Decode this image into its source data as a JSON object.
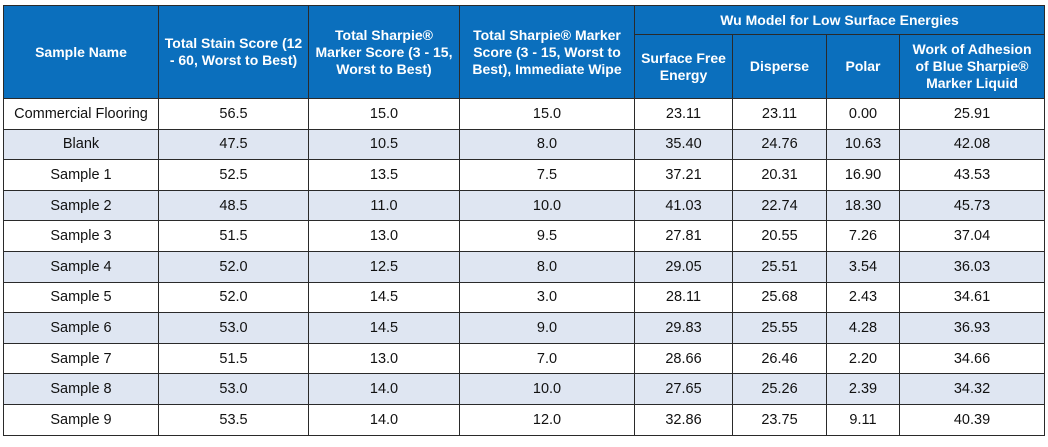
{
  "table": {
    "headers": {
      "sample_name": "Sample Name",
      "total_stain": "Total Stain Score (12 - 60, Worst to Best)",
      "sharpie_score": "Total Sharpie® Marker Score (3 - 15, Worst to Best)",
      "sharpie_immediate": "Total Sharpie® Marker Score (3 - 15, Worst to Best), Immediate Wipe",
      "wu_group": "Wu Model for Low Surface Energies",
      "surface_free_energy": "Surface Free Energy",
      "disperse": "Disperse",
      "polar": "Polar",
      "work_of_adhesion": "Work of Adhesion of Blue Sharpie® Marker Liquid"
    },
    "rows": [
      [
        "Commercial Flooring",
        "56.5",
        "15.0",
        "15.0",
        "23.11",
        "23.11",
        "0.00",
        "25.91"
      ],
      [
        "Blank",
        "47.5",
        "10.5",
        "8.0",
        "35.40",
        "24.76",
        "10.63",
        "42.08"
      ],
      [
        "Sample 1",
        "52.5",
        "13.5",
        "7.5",
        "37.21",
        "20.31",
        "16.90",
        "43.53"
      ],
      [
        "Sample 2",
        "48.5",
        "11.0",
        "10.0",
        "41.03",
        "22.74",
        "18.30",
        "45.73"
      ],
      [
        "Sample 3",
        "51.5",
        "13.0",
        "9.5",
        "27.81",
        "20.55",
        "7.26",
        "37.04"
      ],
      [
        "Sample 4",
        "52.0",
        "12.5",
        "8.0",
        "29.05",
        "25.51",
        "3.54",
        "36.03"
      ],
      [
        "Sample 5",
        "52.0",
        "14.5",
        "3.0",
        "28.11",
        "25.68",
        "2.43",
        "34.61"
      ],
      [
        "Sample 6",
        "53.0",
        "14.5",
        "9.0",
        "29.83",
        "25.55",
        "4.28",
        "36.93"
      ],
      [
        "Sample 7",
        "51.5",
        "13.0",
        "7.0",
        "28.66",
        "26.46",
        "2.20",
        "34.66"
      ],
      [
        "Sample 8",
        "53.0",
        "14.0",
        "10.0",
        "27.65",
        "25.26",
        "2.39",
        "34.32"
      ],
      [
        "Sample 9",
        "53.5",
        "14.0",
        "12.0",
        "32.86",
        "23.75",
        "9.11",
        "40.39"
      ]
    ]
  },
  "colors": {
    "header_bg": "#0b6fbd",
    "header_text": "#ffffff",
    "stripe": "#dfe6f2",
    "border": "#2a2a2a"
  }
}
